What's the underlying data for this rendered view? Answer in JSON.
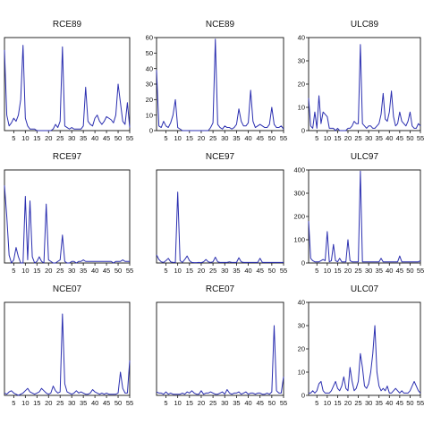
{
  "chart_data": [
    {
      "type": "line",
      "title": "RCE89",
      "xlim": [
        1,
        55
      ],
      "ylim": [
        0,
        60
      ],
      "xticks": [
        "5",
        "10",
        "15",
        "20",
        "25",
        "30",
        "35",
        "40",
        "45",
        "50",
        "55"
      ],
      "yticks": [],
      "x": [
        1,
        2,
        3,
        4,
        5,
        6,
        7,
        8,
        9,
        10,
        11,
        12,
        13,
        14,
        15,
        16,
        17,
        18,
        19,
        20,
        21,
        22,
        23,
        24,
        25,
        26,
        27,
        28,
        29,
        30,
        31,
        32,
        33,
        34,
        35,
        36,
        37,
        38,
        39,
        40,
        41,
        42,
        43,
        44,
        45,
        46,
        47,
        48,
        49,
        50,
        51,
        52,
        53,
        54,
        55
      ],
      "series": [
        {
          "values": [
            52,
            10,
            3,
            5,
            8,
            6,
            10,
            20,
            55,
            8,
            3,
            1,
            1,
            1,
            0,
            0,
            0,
            0,
            0,
            0,
            0,
            1,
            4,
            2,
            6,
            54,
            3,
            2,
            1,
            2,
            1,
            1,
            1,
            1,
            3,
            28,
            6,
            4,
            3,
            8,
            10,
            6,
            4,
            6,
            9,
            8,
            7,
            5,
            10,
            30,
            18,
            6,
            4,
            18,
            2
          ]
        }
      ]
    },
    {
      "type": "line",
      "title": "NCE89",
      "xlim": [
        1,
        55
      ],
      "ylim": [
        0,
        60
      ],
      "xticks": [
        "5",
        "10",
        "15",
        "20",
        "25",
        "30",
        "35",
        "40",
        "45",
        "50",
        "55"
      ],
      "yticks": [
        "0",
        "10",
        "20",
        "30",
        "40",
        "50",
        "60"
      ],
      "x": [
        1,
        2,
        3,
        4,
        5,
        6,
        7,
        8,
        9,
        10,
        11,
        12,
        13,
        14,
        15,
        16,
        17,
        18,
        19,
        20,
        21,
        22,
        23,
        24,
        25,
        26,
        27,
        28,
        29,
        30,
        31,
        32,
        33,
        34,
        35,
        36,
        37,
        38,
        39,
        40,
        41,
        42,
        43,
        44,
        45,
        46,
        47,
        48,
        49,
        50,
        51,
        52,
        53,
        54,
        55
      ],
      "series": [
        {
          "values": [
            39,
            3,
            2,
            6,
            3,
            2,
            5,
            10,
            20,
            2,
            1,
            0,
            0,
            0,
            0,
            0,
            0,
            0,
            0,
            0,
            0,
            0,
            0,
            2,
            5,
            59,
            4,
            2,
            1,
            3,
            2,
            2,
            1,
            2,
            4,
            14,
            6,
            3,
            3,
            5,
            26,
            6,
            2,
            3,
            4,
            3,
            2,
            2,
            4,
            15,
            4,
            2,
            2,
            3,
            1
          ]
        }
      ]
    },
    {
      "type": "line",
      "title": "ULC89",
      "xlim": [
        1,
        55
      ],
      "ylim": [
        0,
        40
      ],
      "xticks": [
        "5",
        "10",
        "15",
        "20",
        "25",
        "30",
        "35",
        "40",
        "45",
        "50",
        "55"
      ],
      "yticks": [
        "0",
        "10",
        "20",
        "30",
        "40"
      ],
      "x": [
        1,
        2,
        3,
        4,
        5,
        6,
        7,
        8,
        9,
        10,
        11,
        12,
        13,
        14,
        15,
        16,
        17,
        18,
        19,
        20,
        21,
        22,
        23,
        24,
        25,
        26,
        27,
        28,
        29,
        30,
        31,
        32,
        33,
        34,
        35,
        36,
        37,
        38,
        39,
        40,
        41,
        42,
        43,
        44,
        45,
        46,
        47,
        48,
        49,
        50,
        51,
        52,
        53,
        54,
        55
      ],
      "series": [
        {
          "values": [
            14,
            2,
            1,
            8,
            1,
            15,
            3,
            8,
            7,
            6,
            1,
            1,
            1,
            0,
            1,
            0,
            0,
            0,
            0,
            1,
            1,
            2,
            4,
            3,
            3,
            37,
            3,
            2,
            1,
            2,
            2,
            1,
            1,
            2,
            3,
            7,
            16,
            5,
            4,
            8,
            17,
            6,
            2,
            3,
            8,
            4,
            3,
            2,
            4,
            8,
            2,
            1,
            1,
            3,
            2
          ]
        }
      ]
    },
    {
      "type": "line",
      "title": "RCE97",
      "xlim": [
        1,
        55
      ],
      "ylim": [
        0,
        60
      ],
      "xticks": [
        "5",
        "10",
        "15",
        "20",
        "25",
        "30",
        "35",
        "40",
        "45",
        "50",
        "55"
      ],
      "yticks": [],
      "x": [
        1,
        2,
        3,
        4,
        5,
        6,
        7,
        8,
        9,
        10,
        11,
        12,
        13,
        14,
        15,
        16,
        17,
        18,
        19,
        20,
        21,
        22,
        23,
        24,
        25,
        26,
        27,
        28,
        29,
        30,
        31,
        32,
        33,
        34,
        35,
        36,
        37,
        38,
        39,
        40,
        41,
        42,
        43,
        44,
        45,
        46,
        47,
        48,
        49,
        50,
        51,
        52,
        53,
        54,
        55
      ],
      "series": [
        {
          "values": [
            50,
            30,
            5,
            0,
            2,
            10,
            4,
            0,
            0,
            43,
            2,
            40,
            4,
            0,
            1,
            4,
            1,
            0,
            38,
            2,
            1,
            0,
            0,
            1,
            2,
            18,
            1,
            0,
            0,
            1,
            1,
            0,
            1,
            1,
            2,
            1,
            1,
            1,
            1,
            1,
            1,
            1,
            1,
            1,
            1,
            1,
            1,
            0,
            1,
            1,
            1,
            2,
            1,
            1,
            1
          ]
        }
      ]
    },
    {
      "type": "line",
      "title": "NCE97",
      "xlim": [
        1,
        55
      ],
      "ylim": [
        0,
        800
      ],
      "xticks": [
        "5",
        "10",
        "15",
        "20",
        "25",
        "30",
        "35",
        "40",
        "45",
        "50",
        "55"
      ],
      "yticks": [],
      "x": [
        1,
        2,
        3,
        4,
        5,
        6,
        7,
        8,
        9,
        10,
        11,
        12,
        13,
        14,
        15,
        16,
        17,
        18,
        19,
        20,
        21,
        22,
        23,
        24,
        25,
        26,
        27,
        28,
        29,
        30,
        31,
        32,
        33,
        34,
        35,
        36,
        37,
        38,
        39,
        40,
        41,
        42,
        43,
        44,
        45,
        46,
        47,
        48,
        49,
        50,
        51,
        52,
        53,
        54,
        55
      ],
      "series": [
        {
          "values": [
            70,
            30,
            10,
            5,
            20,
            40,
            10,
            5,
            5,
            610,
            20,
            5,
            30,
            60,
            20,
            5,
            3,
            3,
            5,
            3,
            10,
            30,
            10,
            5,
            10,
            50,
            10,
            5,
            5,
            5,
            5,
            10,
            5,
            5,
            5,
            45,
            10,
            5,
            5,
            5,
            5,
            5,
            5,
            5,
            40,
            5,
            5,
            5,
            5,
            5,
            5,
            5,
            5,
            5,
            5
          ]
        }
      ]
    },
    {
      "type": "line",
      "title": "ULC97",
      "xlim": [
        1,
        55
      ],
      "ylim": [
        0,
        400
      ],
      "xticks": [
        "5",
        "10",
        "15",
        "20",
        "25",
        "30",
        "35",
        "40",
        "45",
        "50",
        "55"
      ],
      "yticks": [
        "0",
        "100",
        "200",
        "300",
        "400"
      ],
      "x": [
        1,
        2,
        3,
        4,
        5,
        6,
        7,
        8,
        9,
        10,
        11,
        12,
        13,
        14,
        15,
        16,
        17,
        18,
        19,
        20,
        21,
        22,
        23,
        24,
        25,
        26,
        27,
        28,
        29,
        30,
        31,
        32,
        33,
        34,
        35,
        36,
        37,
        38,
        39,
        40,
        41,
        42,
        43,
        44,
        45,
        46,
        47,
        48,
        49,
        50,
        51,
        52,
        53,
        54,
        55
      ],
      "series": [
        {
          "values": [
            180,
            20,
            10,
            5,
            5,
            5,
            10,
            15,
            10,
            135,
            5,
            10,
            80,
            10,
            5,
            20,
            5,
            5,
            5,
            100,
            10,
            5,
            5,
            5,
            5,
            395,
            5,
            5,
            5,
            5,
            5,
            5,
            5,
            5,
            5,
            20,
            5,
            5,
            5,
            5,
            5,
            5,
            5,
            5,
            30,
            5,
            5,
            5,
            5,
            5,
            5,
            5,
            5,
            5,
            10
          ]
        }
      ]
    },
    {
      "type": "line",
      "title": "NCE07",
      "xlim": [
        1,
        55
      ],
      "ylim": [
        0,
        80
      ],
      "xticks": [
        "5",
        "10",
        "15",
        "20",
        "25",
        "30",
        "35",
        "40",
        "45",
        "50",
        "55"
      ],
      "yticks": [],
      "x": [
        1,
        2,
        3,
        4,
        5,
        6,
        7,
        8,
        9,
        10,
        11,
        12,
        13,
        14,
        15,
        16,
        17,
        18,
        19,
        20,
        21,
        22,
        23,
        24,
        25,
        26,
        27,
        28,
        29,
        30,
        31,
        32,
        33,
        34,
        35,
        36,
        37,
        38,
        39,
        40,
        41,
        42,
        43,
        44,
        45,
        46,
        47,
        48,
        49,
        50,
        51,
        52,
        53,
        54,
        55
      ],
      "series": [
        {
          "values": [
            2,
            1,
            3,
            4,
            2,
            1,
            0,
            1,
            2,
            4,
            6,
            3,
            2,
            1,
            2,
            3,
            6,
            4,
            2,
            1,
            2,
            8,
            4,
            2,
            3,
            70,
            10,
            3,
            2,
            1,
            2,
            4,
            2,
            3,
            2,
            1,
            1,
            2,
            5,
            3,
            2,
            1,
            2,
            1,
            2,
            1,
            1,
            1,
            1,
            2,
            20,
            6,
            2,
            2,
            30
          ]
        }
      ]
    },
    {
      "type": "line",
      "title": "RCE07",
      "xlim": [
        1,
        55
      ],
      "ylim": [
        0,
        80
      ],
      "xticks": [
        "5",
        "10",
        "15",
        "20",
        "25",
        "30",
        "35",
        "40",
        "45",
        "50",
        "55"
      ],
      "yticks": [],
      "x": [
        1,
        2,
        3,
        4,
        5,
        6,
        7,
        8,
        9,
        10,
        11,
        12,
        13,
        14,
        15,
        16,
        17,
        18,
        19,
        20,
        21,
        22,
        23,
        24,
        25,
        26,
        27,
        28,
        29,
        30,
        31,
        32,
        33,
        34,
        35,
        36,
        37,
        38,
        39,
        40,
        41,
        42,
        43,
        44,
        45,
        46,
        47,
        48,
        49,
        50,
        51,
        52,
        53,
        54,
        55
      ],
      "series": [
        {
          "values": [
            3,
            2,
            2,
            1,
            3,
            1,
            2,
            1,
            1,
            1,
            1,
            2,
            1,
            3,
            2,
            4,
            2,
            1,
            1,
            4,
            1,
            2,
            2,
            3,
            2,
            1,
            1,
            2,
            3,
            1,
            5,
            2,
            1,
            2,
            2,
            3,
            1,
            2,
            3,
            1,
            2,
            2,
            1,
            2,
            2,
            1,
            1,
            2,
            1,
            3,
            60,
            4,
            2,
            2,
            16
          ]
        }
      ]
    },
    {
      "type": "line",
      "title": "ULC07",
      "xlim": [
        1,
        55
      ],
      "ylim": [
        0,
        40
      ],
      "xticks": [
        "5",
        "10",
        "15",
        "20",
        "25",
        "30",
        "35",
        "40",
        "45",
        "50",
        "55"
      ],
      "yticks": [
        "0",
        "10",
        "20",
        "30",
        "40"
      ],
      "x": [
        1,
        2,
        3,
        4,
        5,
        6,
        7,
        8,
        9,
        10,
        11,
        12,
        13,
        14,
        15,
        16,
        17,
        18,
        19,
        20,
        21,
        22,
        23,
        24,
        25,
        26,
        27,
        28,
        29,
        30,
        31,
        32,
        33,
        34,
        35,
        36,
        37,
        38,
        39,
        40,
        41,
        42,
        43,
        44,
        45,
        46,
        47,
        48,
        49,
        50,
        51,
        52,
        53,
        54,
        55
      ],
      "series": [
        {
          "values": [
            1,
            1,
            2,
            1,
            2,
            5,
            6,
            2,
            1,
            1,
            1,
            2,
            4,
            6,
            3,
            2,
            4,
            8,
            3,
            2,
            12,
            6,
            2,
            3,
            6,
            18,
            12,
            4,
            3,
            5,
            10,
            18,
            30,
            10,
            4,
            2,
            3,
            2,
            4,
            1,
            1,
            2,
            3,
            2,
            1,
            2,
            1,
            1,
            1,
            2,
            4,
            6,
            4,
            2,
            1
          ]
        }
      ]
    }
  ]
}
